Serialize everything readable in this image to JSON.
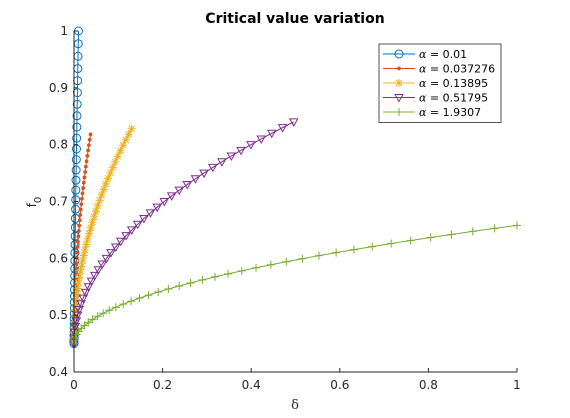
{
  "chart_data": {
    "type": "line",
    "title": "Critical value variation",
    "xlabel": "δ",
    "ylabel_main": "f",
    "ylabel_sub": "0",
    "xlim": [
      0,
      1
    ],
    "ylim": [
      0.4,
      1
    ],
    "xticks": [
      0,
      0.2,
      0.4,
      0.6,
      0.8,
      1
    ],
    "xtick_labels": [
      "0",
      "0.2",
      "0.4",
      "0.6",
      "0.8",
      "1"
    ],
    "yticks": [
      0.4,
      0.5,
      0.6,
      0.7,
      0.8,
      0.9,
      1
    ],
    "ytick_labels": [
      "0.4",
      "0.5",
      "0.6",
      "0.7",
      "0.8",
      "0.9",
      "1"
    ],
    "grid": false,
    "legend_position": "top-right",
    "legend_prefix": "α",
    "series": [
      {
        "name": "= 0.01",
        "color": "#0072BD",
        "marker": "circle",
        "max_delta": 0.0101,
        "max_f": 1.0,
        "exponent": 0.5,
        "points": 40
      },
      {
        "name": "= 0.037276",
        "color": "#D95319",
        "marker": "dot",
        "max_delta": 0.0373,
        "max_f": 0.818,
        "exponent": 0.5,
        "points": 40
      },
      {
        "name": "= 0.13895",
        "color": "#EDB120",
        "marker": "asterisk",
        "max_delta": 0.1301,
        "max_f": 0.828,
        "exponent": 0.5,
        "points": 40
      },
      {
        "name": "= 0.51795",
        "color": "#7E2F8E",
        "marker": "triangle-down",
        "max_delta": 0.496,
        "max_f": 0.84,
        "exponent": 0.5,
        "points": 40
      },
      {
        "name": "= 1.9307",
        "color": "#77AC30",
        "marker": "plus",
        "max_delta": 1.0,
        "max_f": 0.658,
        "exponent": 0.5,
        "points": 40
      }
    ]
  }
}
